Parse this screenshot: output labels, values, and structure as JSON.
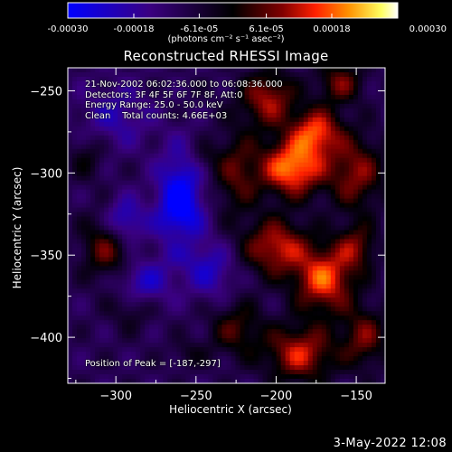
{
  "colorbar": {
    "tick_labels": [
      "-0.00030",
      "-0.00018",
      "-6.1e-05",
      "6.1e-05",
      "0.00018",
      "0.00030"
    ],
    "tick_values": [
      -0.0003,
      -0.00018,
      -6.1e-05,
      6.1e-05,
      0.00018,
      0.0003
    ],
    "range": [
      -0.0003,
      0.0003
    ],
    "units_label": "(photons cm⁻² s⁻¹ asec⁻²)",
    "colormap": [
      "#0000ff",
      "#3a0080",
      "#000000",
      "#800000",
      "#ff2000",
      "#ff9000",
      "#ffff60",
      "#ffffff"
    ]
  },
  "info": {
    "time_range": "21-Nov-2002 06:02:36.000 to 06:08:36.000",
    "detectors": "Detectors: 3F 4F 5F 6F 7F 8F, Att:0",
    "energy_range": "Energy Range: 25.0 - 50.0 keV",
    "clean_line": "Clean    Total counts: 4.66E+03"
  },
  "peak_text": "Position of Peak = [-187,-297]",
  "timestamp": "3-May-2022 12:08",
  "chart_data": {
    "type": "heatmap",
    "title": "Reconstructed RHESSI Image",
    "xlabel": "Heliocentric X (arcsec)",
    "ylabel": "Heliocentric Y (arcsec)",
    "xlim": [
      -330,
      -132
    ],
    "ylim": [
      -428,
      -236
    ],
    "x_ticks": [
      -300,
      -250,
      -200,
      -150
    ],
    "y_ticks": [
      -250,
      -300,
      -350,
      -400
    ],
    "peak": [
      -187,
      -297
    ],
    "value_range": [
      -0.0003,
      0.0003
    ],
    "grid": false,
    "sources": [
      {
        "x": -190,
        "y": -297,
        "amp": 0.0003,
        "sx": 14,
        "sy": 12
      },
      {
        "x": -175,
        "y": -275,
        "amp": 0.00024,
        "sx": 11,
        "sy": 10
      },
      {
        "x": -205,
        "y": -255,
        "amp": 0.0002,
        "sx": 12,
        "sy": 12
      },
      {
        "x": -160,
        "y": -245,
        "amp": 0.00016,
        "sx": 10,
        "sy": 9
      },
      {
        "x": -150,
        "y": -300,
        "amp": 0.00018,
        "sx": 12,
        "sy": 16
      },
      {
        "x": -200,
        "y": -345,
        "amp": 0.00022,
        "sx": 14,
        "sy": 12
      },
      {
        "x": -170,
        "y": -365,
        "amp": 0.00026,
        "sx": 13,
        "sy": 14
      },
      {
        "x": -185,
        "y": -410,
        "amp": 0.00022,
        "sx": 15,
        "sy": 12
      },
      {
        "x": -145,
        "y": -400,
        "amp": 0.00016,
        "sx": 10,
        "sy": 13
      },
      {
        "x": -150,
        "y": -345,
        "amp": 0.00015,
        "sx": 9,
        "sy": 10
      },
      {
        "x": -225,
        "y": -300,
        "amp": 0.00014,
        "sx": 10,
        "sy": 18
      },
      {
        "x": -225,
        "y": -395,
        "amp": 0.00013,
        "sx": 12,
        "sy": 12
      },
      {
        "x": -305,
        "y": -345,
        "amp": 0.00017,
        "sx": 11,
        "sy": 14
      },
      {
        "x": -290,
        "y": -380,
        "amp": 0.0001,
        "sx": 10,
        "sy": 10
      },
      {
        "x": -318,
        "y": -290,
        "amp": 8e-05,
        "sx": 8,
        "sy": 10
      },
      {
        "x": -245,
        "y": -290,
        "amp": 6e-05,
        "sx": 6,
        "sy": 6
      },
      {
        "x": -260,
        "y": -340,
        "amp": 8e-05,
        "sx": 6,
        "sy": 6
      },
      {
        "x": -255,
        "y": -410,
        "amp": 6e-05,
        "sx": 8,
        "sy": 6
      },
      {
        "x": -260,
        "y": -320,
        "amp": -0.00024,
        "sx": 10,
        "sy": 22
      },
      {
        "x": -295,
        "y": -330,
        "amp": -0.00018,
        "sx": 9,
        "sy": 10
      },
      {
        "x": -285,
        "y": -368,
        "amp": -0.00016,
        "sx": 12,
        "sy": 10
      },
      {
        "x": -240,
        "y": -360,
        "amp": -0.00012,
        "sx": 10,
        "sy": 12
      },
      {
        "x": -300,
        "y": -265,
        "amp": -0.0001,
        "sx": 16,
        "sy": 14
      }
    ]
  }
}
